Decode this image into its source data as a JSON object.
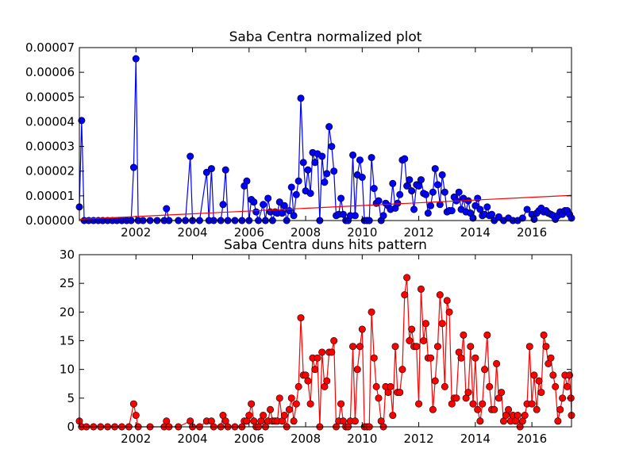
{
  "chart_data": [
    {
      "type": "line",
      "title": "Saba Centra normalized plot",
      "xlim": [
        2000.0,
        2017.4
      ],
      "ylim": [
        0,
        7e-05
      ],
      "xticks": [
        "2002",
        "2004",
        "2006",
        "2008",
        "2010",
        "2012",
        "2014",
        "2016"
      ],
      "yticks": [
        "0.00000",
        "0.00001",
        "0.00002",
        "0.00003",
        "0.00004",
        "0.00005",
        "0.00006",
        "0.00007"
      ],
      "series_color": "#0000ff",
      "trend_color": "#ff0000",
      "trend_line": [
        [
          2000.0,
          5e-07
        ],
        [
          2017.4,
          1.02e-05
        ]
      ],
      "points": [
        [
          2000.0,
          5.5e-06
        ],
        [
          2000.08,
          4.05e-05
        ],
        [
          2000.17,
          0
        ],
        [
          2000.33,
          0
        ],
        [
          2000.5,
          0
        ],
        [
          2000.67,
          0
        ],
        [
          2000.83,
          0
        ],
        [
          2001.0,
          0
        ],
        [
          2001.17,
          0
        ],
        [
          2001.33,
          0
        ],
        [
          2001.5,
          0
        ],
        [
          2001.67,
          0
        ],
        [
          2001.83,
          0
        ],
        [
          2001.92,
          2.15e-05
        ],
        [
          2002.0,
          6.55e-05
        ],
        [
          2002.08,
          0
        ],
        [
          2002.25,
          0
        ],
        [
          2002.5,
          0
        ],
        [
          2002.75,
          0
        ],
        [
          2003.0,
          0
        ],
        [
          2003.08,
          4.8e-06
        ],
        [
          2003.17,
          0
        ],
        [
          2003.5,
          0
        ],
        [
          2003.75,
          0
        ],
        [
          2003.92,
          2.6e-05
        ],
        [
          2004.0,
          0
        ],
        [
          2004.25,
          0
        ],
        [
          2004.5,
          1.95e-05
        ],
        [
          2004.58,
          0
        ],
        [
          2004.67,
          2.1e-05
        ],
        [
          2004.75,
          0
        ],
        [
          2005.0,
          0
        ],
        [
          2005.08,
          6.5e-06
        ],
        [
          2005.17,
          2.05e-05
        ],
        [
          2005.25,
          0
        ],
        [
          2005.5,
          0
        ],
        [
          2005.75,
          0
        ],
        [
          2005.83,
          1.4e-05
        ],
        [
          2005.92,
          1.6e-05
        ],
        [
          2006.0,
          0
        ],
        [
          2006.08,
          8.5e-06
        ],
        [
          2006.17,
          7.5e-06
        ],
        [
          2006.25,
          3.5e-06
        ],
        [
          2006.33,
          0
        ],
        [
          2006.5,
          6.5e-06
        ],
        [
          2006.58,
          0
        ],
        [
          2006.67,
          9e-06
        ],
        [
          2006.75,
          3.5e-06
        ],
        [
          2006.83,
          0
        ],
        [
          2006.92,
          3.5e-06
        ],
        [
          2007.0,
          3e-06
        ],
        [
          2007.08,
          7.5e-06
        ],
        [
          2007.17,
          3e-06
        ],
        [
          2007.25,
          6e-06
        ],
        [
          2007.33,
          0
        ],
        [
          2007.42,
          4e-06
        ],
        [
          2007.5,
          1.35e-05
        ],
        [
          2007.58,
          2e-06
        ],
        [
          2007.67,
          1.05e-05
        ],
        [
          2007.75,
          1.6e-05
        ],
        [
          2007.83,
          4.95e-05
        ],
        [
          2007.92,
          2.35e-05
        ],
        [
          2008.0,
          1.2e-05
        ],
        [
          2008.08,
          2.05e-05
        ],
        [
          2008.17,
          1.1e-05
        ],
        [
          2008.25,
          2.75e-05
        ],
        [
          2008.33,
          2.35e-05
        ],
        [
          2008.42,
          2.7e-05
        ],
        [
          2008.5,
          0
        ],
        [
          2008.58,
          2.6e-05
        ],
        [
          2008.67,
          1.55e-05
        ],
        [
          2008.75,
          1.9e-05
        ],
        [
          2008.83,
          3.8e-05
        ],
        [
          2008.92,
          3e-05
        ],
        [
          2009.0,
          2e-05
        ],
        [
          2009.08,
          2e-06
        ],
        [
          2009.17,
          2.5e-06
        ],
        [
          2009.25,
          9e-06
        ],
        [
          2009.33,
          2.5e-06
        ],
        [
          2009.42,
          0
        ],
        [
          2009.5,
          0
        ],
        [
          2009.58,
          2e-06
        ],
        [
          2009.67,
          2.65e-05
        ],
        [
          2009.75,
          2e-06
        ],
        [
          2009.83,
          1.85e-05
        ],
        [
          2009.92,
          2.45e-05
        ],
        [
          2010.0,
          1.75e-05
        ],
        [
          2010.08,
          0
        ],
        [
          2010.17,
          0
        ],
        [
          2010.25,
          0
        ],
        [
          2010.33,
          2.55e-05
        ],
        [
          2010.42,
          1.3e-05
        ],
        [
          2010.5,
          7e-06
        ],
        [
          2010.58,
          8e-06
        ],
        [
          2010.67,
          0
        ],
        [
          2010.75,
          2e-06
        ],
        [
          2010.83,
          7e-06
        ],
        [
          2010.92,
          6e-06
        ],
        [
          2011.0,
          4.5e-06
        ],
        [
          2011.08,
          1.5e-05
        ],
        [
          2011.17,
          5e-06
        ],
        [
          2011.25,
          7e-06
        ],
        [
          2011.33,
          1.05e-05
        ],
        [
          2011.42,
          2.45e-05
        ],
        [
          2011.5,
          2.5e-05
        ],
        [
          2011.58,
          1.4e-05
        ],
        [
          2011.67,
          1.65e-05
        ],
        [
          2011.75,
          1.2e-05
        ],
        [
          2011.83,
          4.5e-06
        ],
        [
          2011.92,
          1.45e-05
        ],
        [
          2012.0,
          1.4e-05
        ],
        [
          2012.08,
          1.65e-05
        ],
        [
          2012.17,
          1.1e-05
        ],
        [
          2012.25,
          1.05e-05
        ],
        [
          2012.33,
          3e-06
        ],
        [
          2012.42,
          6e-06
        ],
        [
          2012.5,
          1.15e-05
        ],
        [
          2012.58,
          2.1e-05
        ],
        [
          2012.67,
          1.45e-05
        ],
        [
          2012.75,
          6.5e-06
        ],
        [
          2012.83,
          1.85e-05
        ],
        [
          2012.92,
          1.15e-05
        ],
        [
          2013.0,
          3.5e-06
        ],
        [
          2013.08,
          4e-06
        ],
        [
          2013.17,
          4e-06
        ],
        [
          2013.25,
          9.5e-06
        ],
        [
          2013.33,
          8e-06
        ],
        [
          2013.42,
          1.15e-05
        ],
        [
          2013.5,
          4.5e-06
        ],
        [
          2013.58,
          9e-06
        ],
        [
          2013.67,
          3.5e-06
        ],
        [
          2013.75,
          8e-06
        ],
        [
          2013.83,
          3e-06
        ],
        [
          2013.92,
          1e-06
        ],
        [
          2014.0,
          6e-06
        ],
        [
          2014.08,
          9e-06
        ],
        [
          2014.17,
          4.5e-06
        ],
        [
          2014.25,
          2e-06
        ],
        [
          2014.33,
          2.5e-06
        ],
        [
          2014.42,
          5.5e-06
        ],
        [
          2014.5,
          2e-06
        ],
        [
          2014.58,
          2.5e-06
        ],
        [
          2014.67,
          0
        ],
        [
          2014.83,
          1.5e-06
        ],
        [
          2015.0,
          0
        ],
        [
          2015.17,
          1e-06
        ],
        [
          2015.33,
          0
        ],
        [
          2015.5,
          0
        ],
        [
          2015.67,
          1e-06
        ],
        [
          2015.83,
          4.5e-06
        ],
        [
          2016.0,
          2.5e-06
        ],
        [
          2016.08,
          5e-07
        ],
        [
          2016.17,
          3e-06
        ],
        [
          2016.25,
          4e-06
        ],
        [
          2016.33,
          5e-06
        ],
        [
          2016.42,
          3.5e-06
        ],
        [
          2016.5,
          4e-06
        ],
        [
          2016.58,
          3e-06
        ],
        [
          2016.67,
          2.5e-06
        ],
        [
          2016.75,
          2e-06
        ],
        [
          2016.83,
          5e-07
        ],
        [
          2016.92,
          2e-06
        ],
        [
          2017.0,
          3.5e-06
        ],
        [
          2017.08,
          2.5e-06
        ],
        [
          2017.17,
          4e-06
        ],
        [
          2017.25,
          4e-06
        ],
        [
          2017.33,
          2.5e-06
        ],
        [
          2017.4,
          1e-06
        ]
      ]
    },
    {
      "type": "line",
      "title": "Saba Centra duns hits pattern",
      "xlim": [
        2000.0,
        2017.4
      ],
      "ylim": [
        0,
        30
      ],
      "xticks": [
        "2002",
        "2004",
        "2006",
        "2008",
        "2010",
        "2012",
        "2014",
        "2016"
      ],
      "yticks": [
        "0",
        "5",
        "10",
        "15",
        "20",
        "25",
        "30"
      ],
      "series_color": "#ff0000",
      "points": [
        [
          2000.0,
          1
        ],
        [
          2000.08,
          0
        ],
        [
          2000.25,
          0
        ],
        [
          2000.5,
          0
        ],
        [
          2000.75,
          0
        ],
        [
          2001.0,
          0
        ],
        [
          2001.25,
          0
        ],
        [
          2001.5,
          0
        ],
        [
          2001.75,
          0
        ],
        [
          2001.92,
          4
        ],
        [
          2002.0,
          2
        ],
        [
          2002.08,
          0
        ],
        [
          2002.5,
          0
        ],
        [
          2003.0,
          0
        ],
        [
          2003.08,
          1
        ],
        [
          2003.17,
          0
        ],
        [
          2003.5,
          0
        ],
        [
          2003.92,
          1
        ],
        [
          2004.0,
          0
        ],
        [
          2004.25,
          0
        ],
        [
          2004.5,
          1
        ],
        [
          2004.67,
          1
        ],
        [
          2004.75,
          0
        ],
        [
          2005.0,
          0
        ],
        [
          2005.08,
          2
        ],
        [
          2005.17,
          1
        ],
        [
          2005.25,
          0
        ],
        [
          2005.5,
          0
        ],
        [
          2005.75,
          0
        ],
        [
          2005.83,
          1
        ],
        [
          2005.92,
          1
        ],
        [
          2006.0,
          2
        ],
        [
          2006.08,
          4
        ],
        [
          2006.17,
          1
        ],
        [
          2006.25,
          0
        ],
        [
          2006.33,
          0
        ],
        [
          2006.42,
          1
        ],
        [
          2006.5,
          2
        ],
        [
          2006.58,
          0
        ],
        [
          2006.67,
          1
        ],
        [
          2006.75,
          3
        ],
        [
          2006.83,
          1
        ],
        [
          2006.92,
          1
        ],
        [
          2007.0,
          1
        ],
        [
          2007.08,
          5
        ],
        [
          2007.17,
          1
        ],
        [
          2007.25,
          2
        ],
        [
          2007.33,
          0
        ],
        [
          2007.42,
          3
        ],
        [
          2007.5,
          5
        ],
        [
          2007.58,
          1
        ],
        [
          2007.67,
          4
        ],
        [
          2007.75,
          7
        ],
        [
          2007.83,
          19
        ],
        [
          2007.92,
          9
        ],
        [
          2008.0,
          9
        ],
        [
          2008.08,
          8
        ],
        [
          2008.17,
          4
        ],
        [
          2008.25,
          12
        ],
        [
          2008.33,
          10
        ],
        [
          2008.42,
          12
        ],
        [
          2008.5,
          0
        ],
        [
          2008.58,
          13
        ],
        [
          2008.67,
          7
        ],
        [
          2008.75,
          8
        ],
        [
          2008.83,
          13
        ],
        [
          2008.92,
          13
        ],
        [
          2009.0,
          15
        ],
        [
          2009.08,
          0
        ],
        [
          2009.17,
          1
        ],
        [
          2009.25,
          4
        ],
        [
          2009.33,
          1
        ],
        [
          2009.42,
          0
        ],
        [
          2009.5,
          0
        ],
        [
          2009.58,
          1
        ],
        [
          2009.67,
          14
        ],
        [
          2009.75,
          1
        ],
        [
          2009.83,
          10
        ],
        [
          2009.92,
          14
        ],
        [
          2010.0,
          17
        ],
        [
          2010.08,
          0
        ],
        [
          2010.17,
          0
        ],
        [
          2010.25,
          0
        ],
        [
          2010.33,
          20
        ],
        [
          2010.42,
          12
        ],
        [
          2010.5,
          7
        ],
        [
          2010.58,
          5
        ],
        [
          2010.67,
          1
        ],
        [
          2010.75,
          0
        ],
        [
          2010.83,
          7
        ],
        [
          2010.92,
          6
        ],
        [
          2011.0,
          7
        ],
        [
          2011.08,
          2
        ],
        [
          2011.17,
          14
        ],
        [
          2011.25,
          6
        ],
        [
          2011.33,
          6
        ],
        [
          2011.42,
          10
        ],
        [
          2011.5,
          23
        ],
        [
          2011.58,
          26
        ],
        [
          2011.67,
          15
        ],
        [
          2011.75,
          17
        ],
        [
          2011.83,
          14
        ],
        [
          2011.92,
          14
        ],
        [
          2012.0,
          4
        ],
        [
          2012.08,
          24
        ],
        [
          2012.17,
          15
        ],
        [
          2012.25,
          18
        ],
        [
          2012.33,
          12
        ],
        [
          2012.42,
          12
        ],
        [
          2012.5,
          3
        ],
        [
          2012.58,
          8
        ],
        [
          2012.67,
          14
        ],
        [
          2012.75,
          23
        ],
        [
          2012.83,
          18
        ],
        [
          2012.92,
          7
        ],
        [
          2013.0,
          22
        ],
        [
          2013.08,
          20
        ],
        [
          2013.17,
          4
        ],
        [
          2013.25,
          5
        ],
        [
          2013.33,
          5
        ],
        [
          2013.42,
          13
        ],
        [
          2013.5,
          12
        ],
        [
          2013.58,
          16
        ],
        [
          2013.67,
          5
        ],
        [
          2013.75,
          6
        ],
        [
          2013.83,
          14
        ],
        [
          2013.92,
          4
        ],
        [
          2014.0,
          12
        ],
        [
          2014.08,
          3
        ],
        [
          2014.17,
          1
        ],
        [
          2014.25,
          4
        ],
        [
          2014.33,
          10
        ],
        [
          2014.42,
          16
        ],
        [
          2014.5,
          7
        ],
        [
          2014.58,
          3
        ],
        [
          2014.67,
          3
        ],
        [
          2014.75,
          11
        ],
        [
          2014.83,
          5
        ],
        [
          2014.92,
          6
        ],
        [
          2015.0,
          1
        ],
        [
          2015.08,
          2
        ],
        [
          2015.17,
          3
        ],
        [
          2015.25,
          1
        ],
        [
          2015.33,
          2
        ],
        [
          2015.42,
          1
        ],
        [
          2015.5,
          2
        ],
        [
          2015.58,
          0
        ],
        [
          2015.67,
          1
        ],
        [
          2015.75,
          2
        ],
        [
          2015.83,
          4
        ],
        [
          2015.92,
          14
        ],
        [
          2016.0,
          4
        ],
        [
          2016.08,
          9
        ],
        [
          2016.17,
          3
        ],
        [
          2016.25,
          8
        ],
        [
          2016.33,
          6
        ],
        [
          2016.42,
          16
        ],
        [
          2016.5,
          14
        ],
        [
          2016.58,
          11
        ],
        [
          2016.67,
          12
        ],
        [
          2016.75,
          9
        ],
        [
          2016.83,
          7
        ],
        [
          2016.92,
          1
        ],
        [
          2017.0,
          3
        ],
        [
          2017.08,
          5
        ],
        [
          2017.17,
          9
        ],
        [
          2017.25,
          7
        ],
        [
          2017.33,
          9
        ],
        [
          2017.38,
          5
        ],
        [
          2017.4,
          2
        ]
      ]
    }
  ]
}
